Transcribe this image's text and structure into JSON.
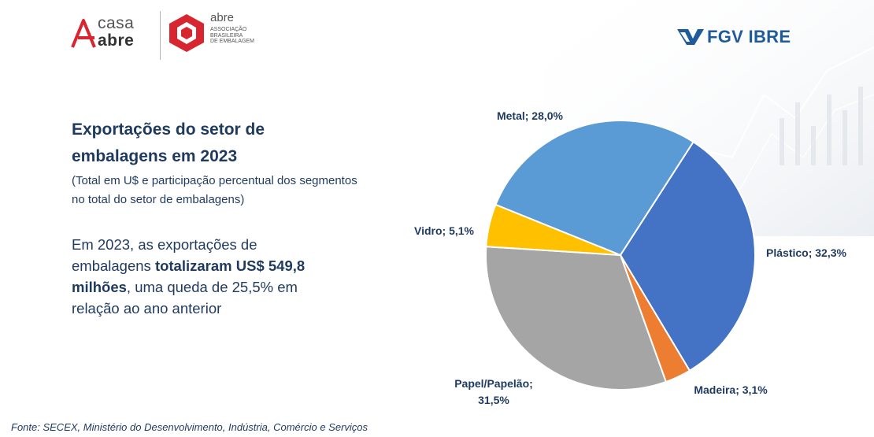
{
  "logos": {
    "casa_abre": {
      "line1": "casa",
      "line2": "abre"
    },
    "abre": {
      "name": "abre",
      "subtitle_lines": [
        "ASSOCIAÇÃO",
        "BRASILEIRA",
        "DE EMBALAGEM"
      ]
    },
    "fgv": {
      "text": "FGV IBRE"
    }
  },
  "colors": {
    "heading": "#1f3a5f",
    "brand_red": "#d7262f",
    "brand_blue": "#1f5a9c"
  },
  "title": "Exportações do setor de embalagens em 2023",
  "subtitle": "(Total em U$ e participação percentual dos segmentos no total do setor de embalagens)",
  "highlight": {
    "part1": "Em 2023, as exportações de embalagens ",
    "bold": "totalizaram US$ 549,8 milhões",
    "part2": ", uma queda de 25,5% em relação ao ano anterior"
  },
  "source": "Fonte: SECEX, Ministério do Desenvolvimento, Indústria, Comércio e Serviços",
  "chart_data": {
    "type": "pie",
    "title": "",
    "slices": [
      {
        "name": "Metal",
        "value": 28.0,
        "label": "Metal; 28,0%",
        "color": "#5b9bd5"
      },
      {
        "name": "Plástico",
        "value": 32.3,
        "label": "Plástico; 32,3%",
        "color": "#4472c4"
      },
      {
        "name": "Madeira",
        "value": 3.1,
        "label": "Madeira; 3,1%",
        "color": "#ed7d31"
      },
      {
        "name": "Papel/Papelão",
        "value": 31.5,
        "label_lines": [
          "Papel/Papelão;",
          "31,5%"
        ],
        "color": "#a5a5a5"
      },
      {
        "name": "Vidro",
        "value": 5.1,
        "label": "Vidro; 5,1%",
        "color": "#ffc000"
      }
    ],
    "start_angle_deg": -68,
    "direction": "clockwise"
  }
}
